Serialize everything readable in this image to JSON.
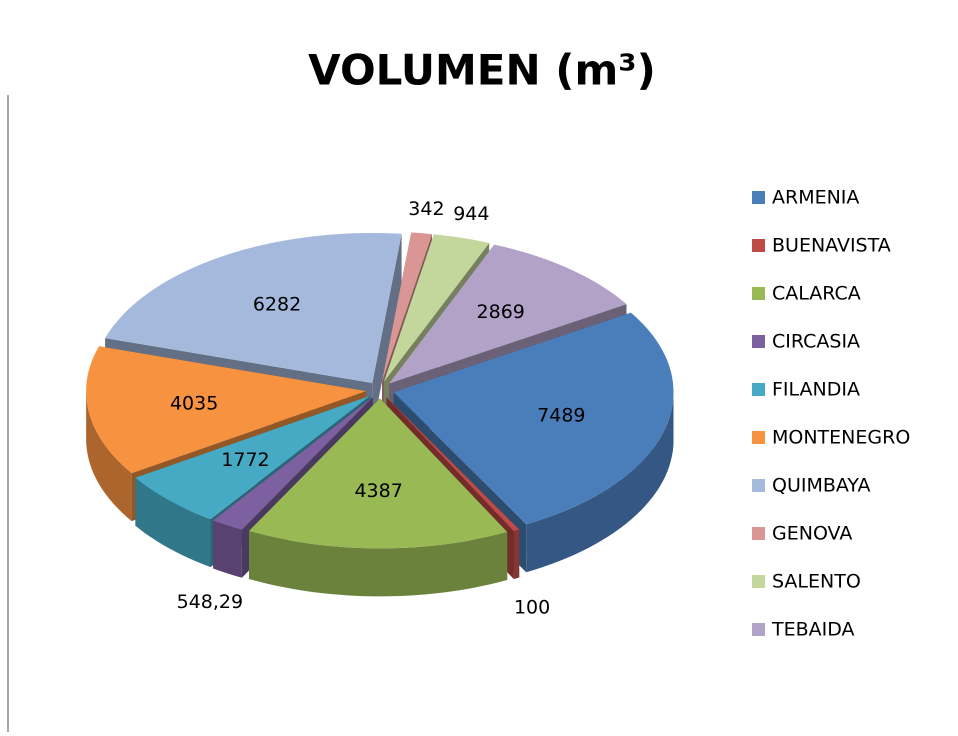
{
  "chart_data": {
    "type": "pie",
    "title": "VOLUMEN (m³)",
    "categories": [
      "ARMENIA",
      "BUENAVISTA",
      "CALARCA",
      "CIRCASIA",
      "FILANDIA",
      "MONTENEGRO",
      "QUIMBAYA",
      "GENOVA",
      "SALENTO",
      "TEBAIDA"
    ],
    "values": [
      7489,
      100,
      4387,
      548.29,
      1772,
      4035,
      6282,
      342,
      944,
      2869
    ],
    "value_labels": [
      "7489",
      "100",
      "4387",
      "548,29",
      "1772",
      "4035",
      "6282",
      "342",
      "944",
      "2869"
    ],
    "colors": [
      "#4a7ebb",
      "#be4b48",
      "#98b954",
      "#7d60a0",
      "#46aac5",
      "#f69240",
      "#a5b9dd",
      "#d99694",
      "#c3d69b",
      "#b3a2c7"
    ],
    "legend": "right"
  }
}
